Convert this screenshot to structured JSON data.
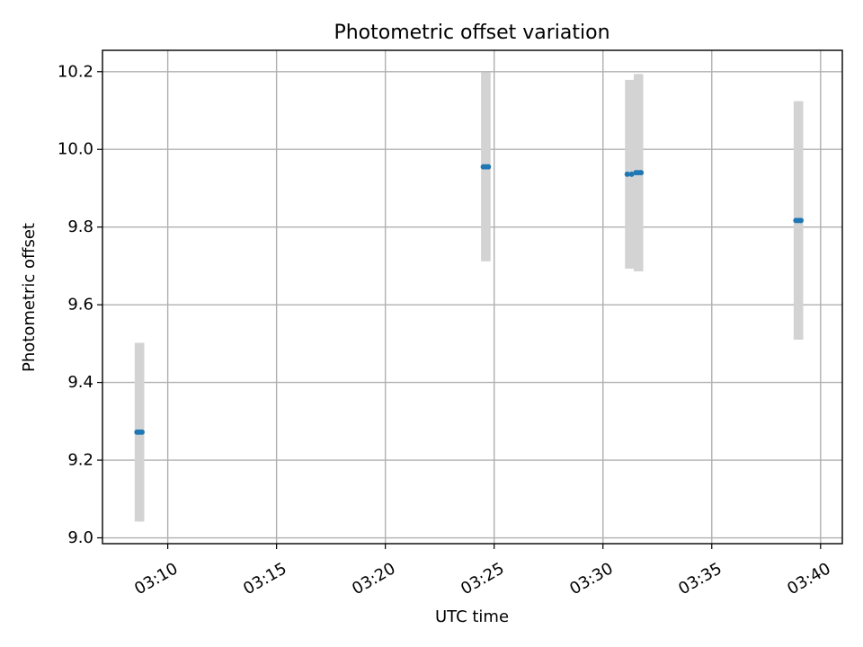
{
  "chart_data": {
    "type": "scatter",
    "title": "Photometric offset variation",
    "xlabel": "UTC time",
    "ylabel": "Photometric offset",
    "xlim": [
      "03:07:00",
      "03:41:00"
    ],
    "ylim": [
      8.985,
      10.255
    ],
    "x_ticks": [
      "03:10",
      "03:15",
      "03:20",
      "03:25",
      "03:30",
      "03:35",
      "03:40"
    ],
    "y_ticks": [
      "9.0",
      "9.2",
      "9.4",
      "9.6",
      "9.8",
      "10.0",
      "10.2"
    ],
    "grid": true,
    "series": [
      {
        "marker_color": "#1f77b4",
        "errorbar_color": "#d3d3d3",
        "points": [
          {
            "x": "03:08:35",
            "y": 9.272,
            "err": 0.23
          },
          {
            "x": "03:08:42",
            "y": 9.272,
            "err": 0.23
          },
          {
            "x": "03:08:49",
            "y": 9.272,
            "err": 0.23
          },
          {
            "x": "03:24:30",
            "y": 9.955,
            "err": 0.243
          },
          {
            "x": "03:24:37",
            "y": 9.955,
            "err": 0.243
          },
          {
            "x": "03:24:44",
            "y": 9.955,
            "err": 0.243
          },
          {
            "x": "03:31:07",
            "y": 9.936,
            "err": 0.243
          },
          {
            "x": "03:31:19",
            "y": 9.936,
            "err": 0.243
          },
          {
            "x": "03:31:31",
            "y": 9.94,
            "err": 0.254
          },
          {
            "x": "03:31:38",
            "y": 9.94,
            "err": 0.254
          },
          {
            "x": "03:31:45",
            "y": 9.94,
            "err": 0.254
          },
          {
            "x": "03:38:52",
            "y": 9.817,
            "err": 0.307
          },
          {
            "x": "03:38:59",
            "y": 9.817,
            "err": 0.307
          },
          {
            "x": "03:39:06",
            "y": 9.817,
            "err": 0.307
          }
        ]
      }
    ]
  }
}
